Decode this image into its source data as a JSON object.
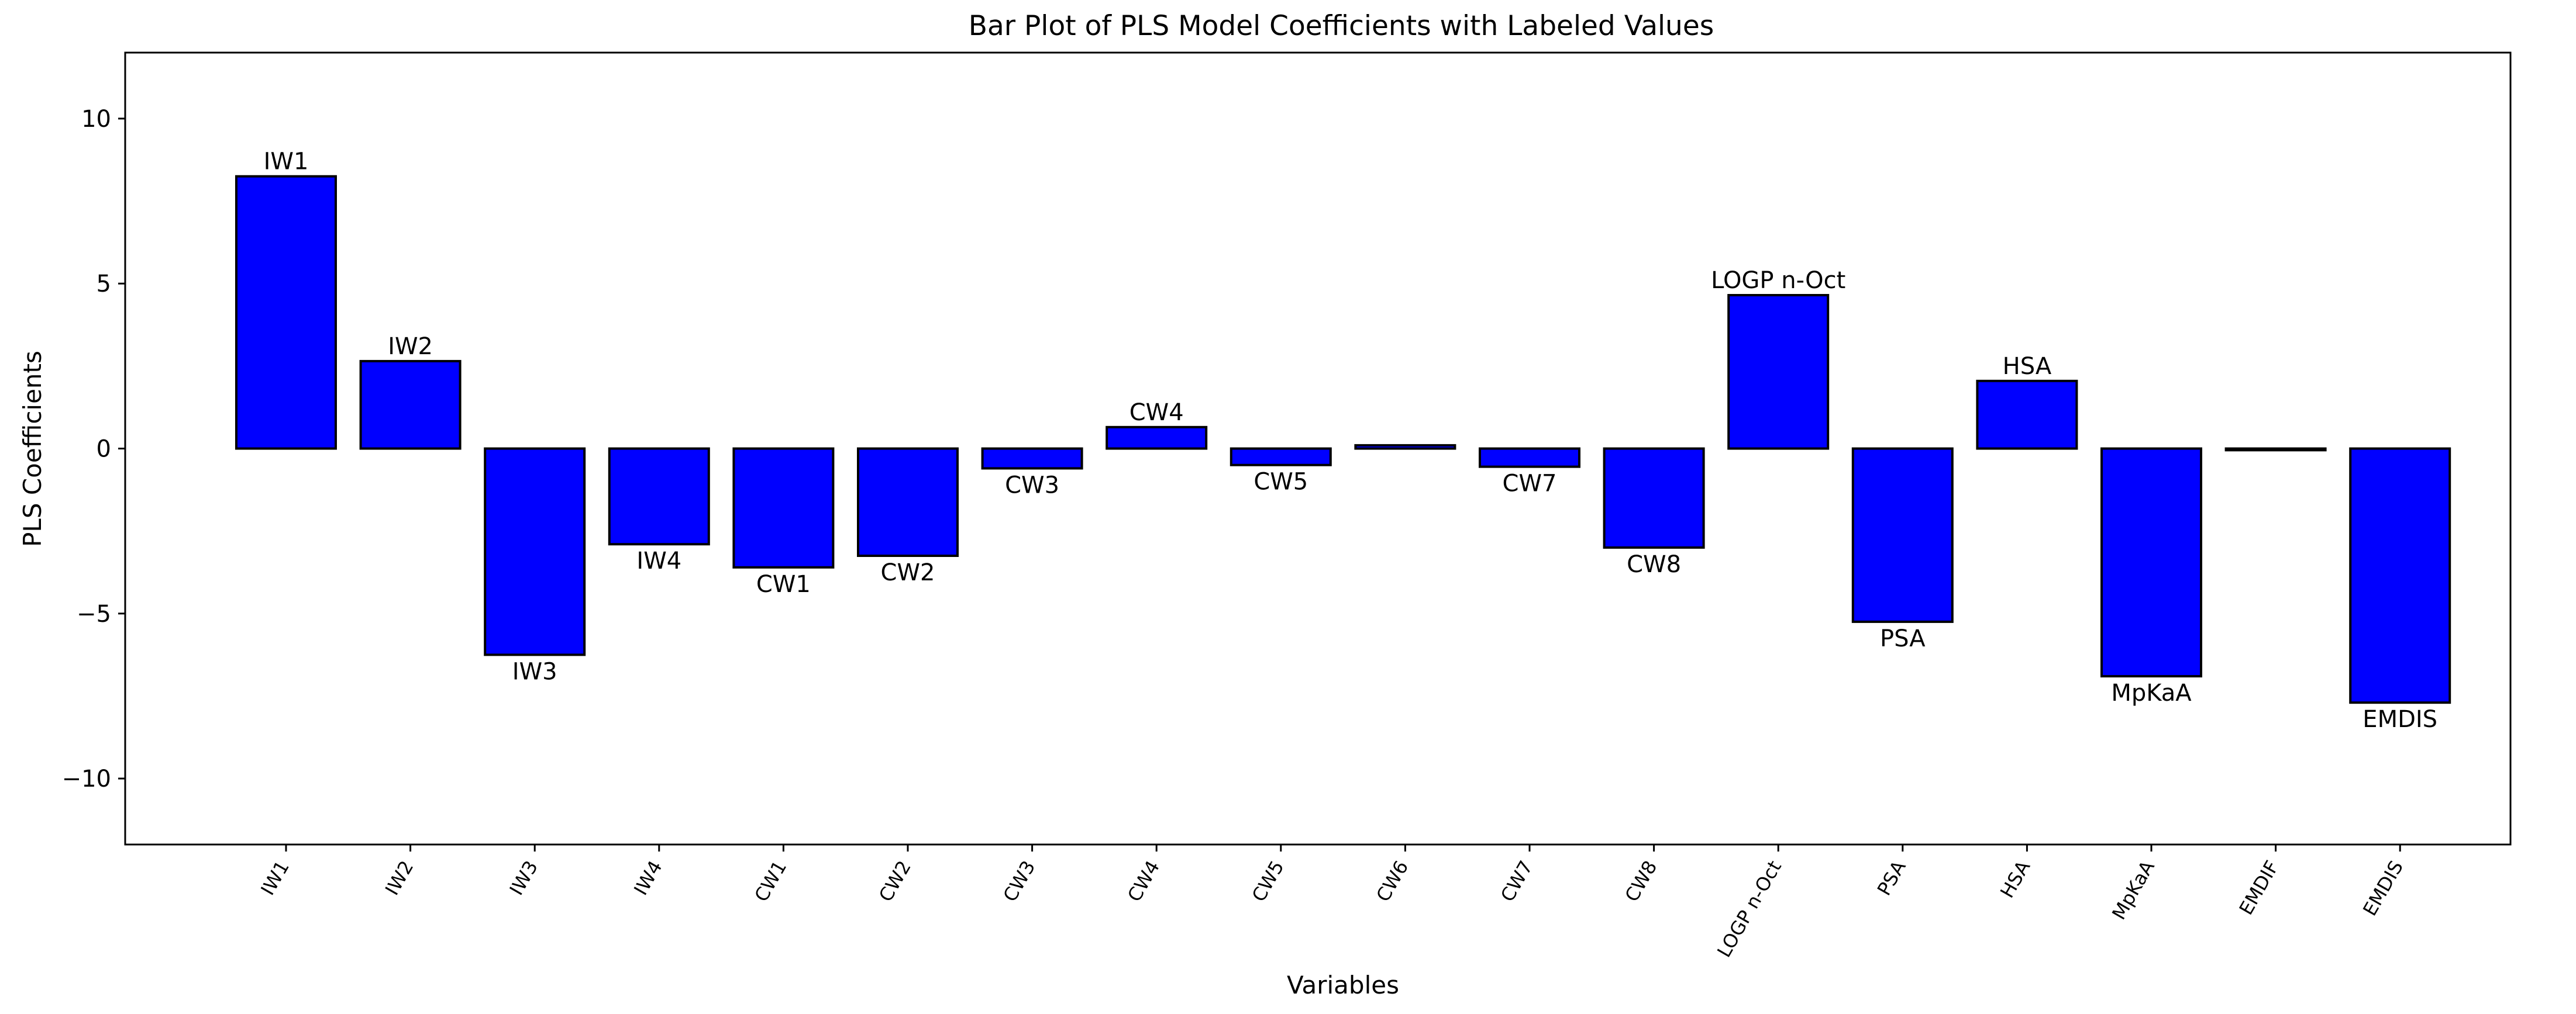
{
  "chart_data": {
    "type": "bar",
    "title": "Bar Plot of PLS Model Coefficients with Labeled Values",
    "xlabel": "Variables",
    "ylabel": "PLS Coefficients",
    "ylim": [
      -12,
      12
    ],
    "yticks": [
      10,
      5,
      0,
      -5,
      -10
    ],
    "ytick_labels": [
      "10",
      "5",
      "0",
      "−5",
      "−10"
    ],
    "grid": false,
    "legend": "none",
    "colors": {
      "bar_fill": "#0000ff",
      "bar_edge": "#000000",
      "axes": "#000000",
      "background": "#ffffff"
    },
    "categories": [
      "IW1",
      "IW2",
      "IW3",
      "IW4",
      "CW1",
      "CW2",
      "CW3",
      "CW4",
      "CW5",
      "CW6",
      "CW7",
      "CW8",
      "LOGP n-Oct",
      "PSA",
      "HSA",
      "MpKaA",
      "EMDIF",
      "EMDIS"
    ],
    "values": [
      8.25,
      2.65,
      -6.25,
      -2.9,
      -3.6,
      -3.25,
      -0.6,
      0.65,
      -0.5,
      0.1,
      -0.55,
      -3.0,
      4.65,
      -5.25,
      2.05,
      -6.9,
      -0.05,
      -7.7
    ],
    "bar_labels": [
      "IW1",
      "IW2",
      "IW3",
      "IW4",
      "CW1",
      "CW2",
      "CW3",
      "CW4",
      "CW5",
      "",
      "CW7",
      "CW8",
      "LOGP n-Oct",
      "PSA",
      "HSA",
      "MpKaA",
      "",
      "EMDIS"
    ]
  }
}
